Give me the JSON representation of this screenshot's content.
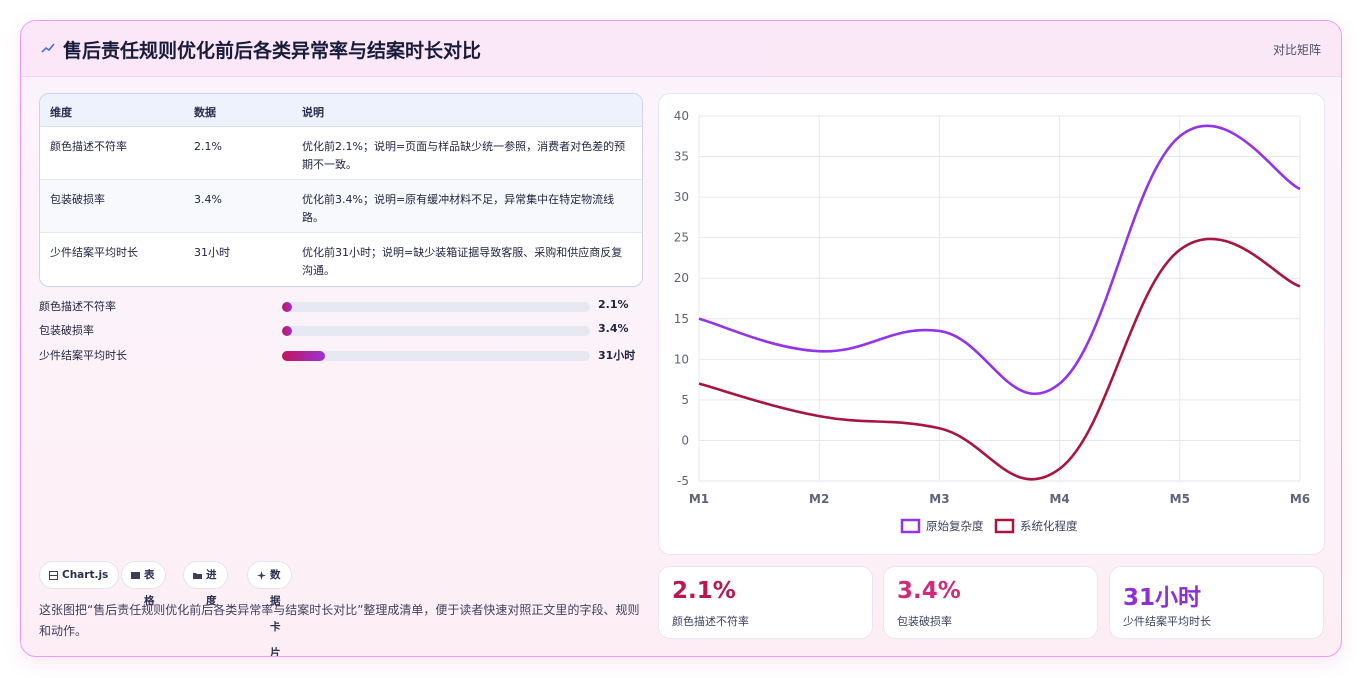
{
  "header": {
    "title": "售后责任规则优化前后各类异常率与结案时长对比",
    "tag": "对比矩阵"
  },
  "table": {
    "columns": [
      "维度",
      "数据",
      "说明"
    ],
    "rows": [
      {
        "dim": "颜色描述不符率",
        "val": "2.1%",
        "desc": "优化前2.1%；说明=页面与样品缺少统一参照，消费者对色差的预期不一致。"
      },
      {
        "dim": "包装破损率",
        "val": "3.4%",
        "desc": "优化前3.4%；说明=原有缓冲材料不足，异常集中在特定物流线路。"
      },
      {
        "dim": "少件结案平均时长",
        "val": "31小时",
        "desc": "优化前31小时；说明=缺少装箱证据导致客服、采购和供应商反复沟通。"
      }
    ]
  },
  "progress": [
    {
      "label": "颜色描述不符率",
      "value": "2.1%",
      "fraction": 0.021
    },
    {
      "label": "包装破损率",
      "value": "3.4%",
      "fraction": 0.034
    },
    {
      "label": "少件结案平均时长",
      "value": "31小时",
      "fraction": 0.14
    }
  ],
  "chips": [
    "Chart.js",
    "表格",
    "进度",
    "数据卡片"
  ],
  "note": "这张图把“售后责任规则优化前后各类异常率与结案时长对比”整理成清单，便于读者快速对照正文里的字段、规则和动作。",
  "stats": [
    {
      "value": "2.1%",
      "label": "颜色描述不符率",
      "color": "#b8174f"
    },
    {
      "value": "3.4%",
      "label": "包装破损率",
      "color": "#d02a78"
    },
    {
      "value": "31小时",
      "label": "少件结案平均时长",
      "color": "#8e2fd4"
    }
  ],
  "chart_data": {
    "type": "line",
    "categories": [
      "M1",
      "M2",
      "M3",
      "M4",
      "M5",
      "M6"
    ],
    "series": [
      {
        "name": "原始复杂度",
        "color": "#9333ea",
        "values": [
          15,
          11,
          13.5,
          7,
          37.5,
          31
        ]
      },
      {
        "name": "系统化程度",
        "color": "#a8163f",
        "values": [
          7,
          3,
          1.5,
          -3.5,
          23.5,
          19
        ]
      }
    ],
    "yticks": [
      40,
      35,
      30,
      25,
      20,
      15,
      10,
      5,
      0,
      -5
    ],
    "ylim": [
      -5,
      40
    ],
    "grid": true,
    "legend": "bottom"
  }
}
